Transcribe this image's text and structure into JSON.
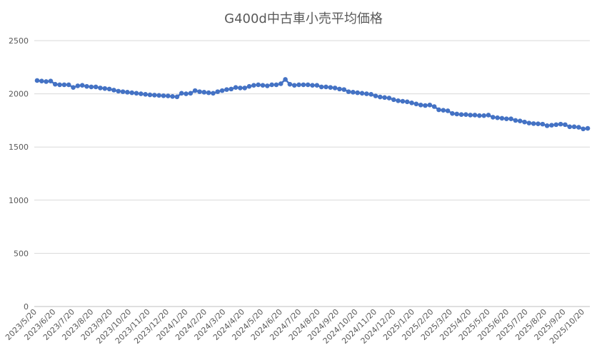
{
  "chart_data": {
    "type": "line",
    "title": "G400d中古車小売平均価格",
    "xlabel": "",
    "ylabel": "",
    "ylim": [
      0,
      2500
    ],
    "yticks": [
      0,
      500,
      1000,
      1500,
      2000,
      2500
    ],
    "x_tick_labels": [
      "2023/5/20",
      "2023/6/20",
      "2023/7/20",
      "2023/8/20",
      "2023/9/20",
      "2023/10/20",
      "2023/11/20",
      "2023/12/20",
      "2024/1/20",
      "2024/2/20",
      "2024/3/20",
      "2024/4/20",
      "2024/5/20",
      "2024/6/20",
      "2024/7/20",
      "2024/8/20",
      "2024/9/20",
      "2024/10/20",
      "2024/11/20",
      "2024/12/20",
      "2025/1/20",
      "2025/2/20",
      "2025/3/20",
      "2025/4/20",
      "2025/5/20",
      "2025/6/20",
      "2025/7/20",
      "2025/8/20",
      "2025/9/20",
      "2025/10/20"
    ],
    "grid": true,
    "series_color": "#4472c4",
    "series": [
      {
        "values": [
          2125,
          2120,
          2115,
          2120,
          2090,
          2085,
          2085,
          2085,
          2060,
          2075,
          2080,
          2070,
          2065,
          2065,
          2055,
          2050,
          2045,
          2035,
          2025,
          2020,
          2015,
          2010,
          2005,
          2000,
          1995,
          1990,
          1988,
          1985,
          1982,
          1980,
          1975,
          1972,
          2005,
          2000,
          2005,
          2030,
          2020,
          2015,
          2010,
          2005,
          2020,
          2030,
          2040,
          2045,
          2060,
          2055,
          2055,
          2070,
          2080,
          2085,
          2080,
          2075,
          2085,
          2085,
          2095,
          2135,
          2090,
          2080,
          2085,
          2085,
          2085,
          2080,
          2080,
          2065,
          2065,
          2060,
          2055,
          2045,
          2040,
          2020,
          2015,
          2010,
          2005,
          2000,
          1995,
          1980,
          1970,
          1965,
          1960,
          1945,
          1935,
          1930,
          1925,
          1915,
          1905,
          1895,
          1890,
          1895,
          1880,
          1850,
          1845,
          1840,
          1815,
          1810,
          1805,
          1805,
          1800,
          1800,
          1795,
          1795,
          1800,
          1780,
          1775,
          1770,
          1765,
          1765,
          1750,
          1745,
          1735,
          1725,
          1720,
          1718,
          1715,
          1700,
          1705,
          1710,
          1715,
          1710,
          1690,
          1690,
          1685,
          1670,
          1675
        ]
      }
    ]
  }
}
